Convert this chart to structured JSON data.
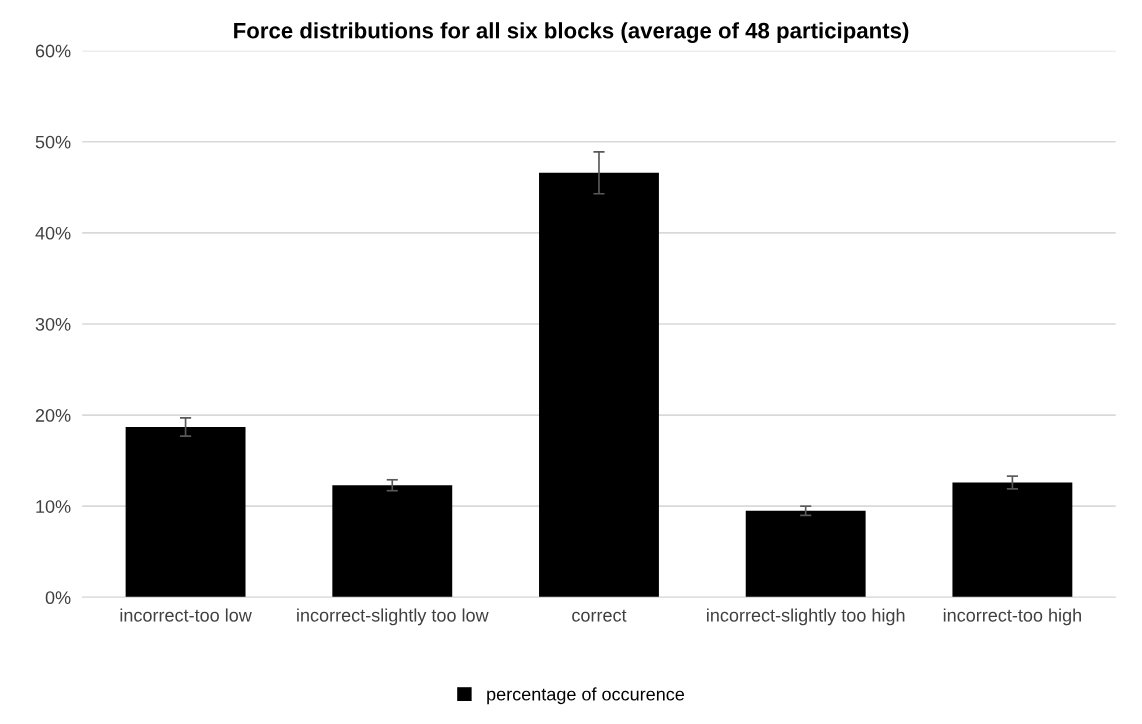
{
  "chart_data": {
    "type": "bar",
    "title": "Force distributions for all six blocks (average of 48 participants)",
    "categories": [
      "incorrect-too low",
      "incorrect-slightly too low",
      "correct",
      "incorrect-slightly too high",
      "incorrect-too high"
    ],
    "series": [
      {
        "name": "percentage of occurence",
        "color": "#000000",
        "values": [
          18.7,
          12.3,
          46.6,
          9.5,
          12.6
        ],
        "errors": [
          1.0,
          0.6,
          2.3,
          0.5,
          0.7
        ]
      }
    ],
    "ylim": [
      0,
      60
    ],
    "yticks": [
      {
        "value": 0,
        "label": "0%"
      },
      {
        "value": 10,
        "label": "10%"
      },
      {
        "value": 20,
        "label": "20%"
      },
      {
        "value": 30,
        "label": "30%"
      },
      {
        "value": 40,
        "label": "40%"
      },
      {
        "value": 50,
        "label": "50%"
      },
      {
        "value": 60,
        "label": "60%"
      }
    ],
    "grid": "y",
    "legend": "bottom"
  }
}
